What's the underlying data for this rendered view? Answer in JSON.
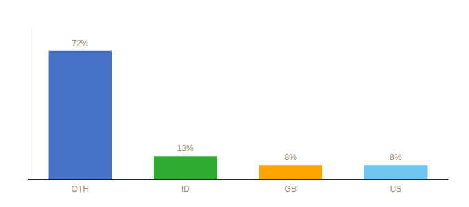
{
  "chart_data": {
    "type": "bar",
    "categories": [
      "OTH",
      "ID",
      "GB",
      "US"
    ],
    "values": [
      72,
      13,
      8,
      8
    ],
    "value_labels": [
      "72%",
      "13%",
      "8%",
      "8%"
    ],
    "colors": [
      "#4472C4",
      "#2EAA2E",
      "#FFA500",
      "#6EC6F0"
    ],
    "data_labels": true,
    "ylim": [
      0,
      85
    ],
    "grid": false,
    "tick_labels": "x"
  }
}
